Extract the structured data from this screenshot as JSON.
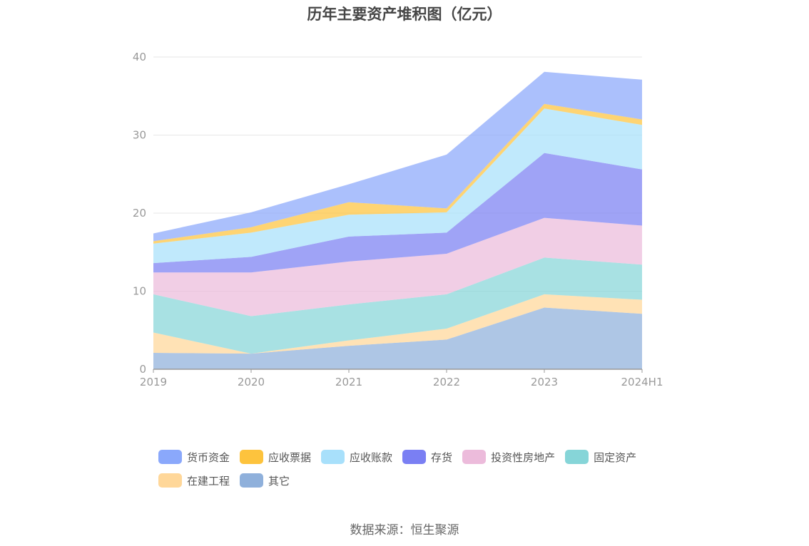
{
  "chart_data": {
    "type": "area",
    "stacked": true,
    "title": "历年主要资产堆积图（亿元）",
    "x": [
      "2019",
      "2020",
      "2021",
      "2022",
      "2023",
      "2024H1"
    ],
    "ylim": [
      0,
      40
    ],
    "yticks": [
      0,
      10,
      20,
      30,
      40
    ],
    "grid": true,
    "legend_position": "bottom",
    "series": [
      {
        "name": "其它",
        "color": "#8fb0db",
        "values": [
          2.1,
          2.0,
          3.0,
          3.8,
          7.9,
          7.1
        ]
      },
      {
        "name": "在建工程",
        "color": "#ffd799",
        "values": [
          2.6,
          0.0,
          0.7,
          1.4,
          1.7,
          1.8
        ]
      },
      {
        "name": "固定资产",
        "color": "#86d5d8",
        "values": [
          4.9,
          4.8,
          4.6,
          4.4,
          4.7,
          4.5
        ]
      },
      {
        "name": "投资性房地产",
        "color": "#ecbbdb",
        "values": [
          2.8,
          5.6,
          5.5,
          5.2,
          5.1,
          5.0
        ]
      },
      {
        "name": "存货",
        "color": "#7a7ff3",
        "values": [
          1.2,
          2.0,
          3.2,
          2.7,
          8.3,
          7.2
        ]
      },
      {
        "name": "应收账款",
        "color": "#a8e0fb",
        "values": [
          2.5,
          3.1,
          2.8,
          2.6,
          5.7,
          5.7
        ]
      },
      {
        "name": "应收票据",
        "color": "#fdc33d",
        "values": [
          0.3,
          0.7,
          1.6,
          0.5,
          0.6,
          0.7
        ]
      },
      {
        "name": "货币资金",
        "color": "#8aa8fb",
        "values": [
          1.0,
          1.9,
          2.3,
          6.9,
          4.1,
          5.1
        ]
      }
    ]
  },
  "legend_order": [
    "货币资金",
    "应收票据",
    "应收账款",
    "存货",
    "投资性房地产",
    "固定资产",
    "在建工程",
    "其它"
  ],
  "source": "数据来源：恒生聚源"
}
